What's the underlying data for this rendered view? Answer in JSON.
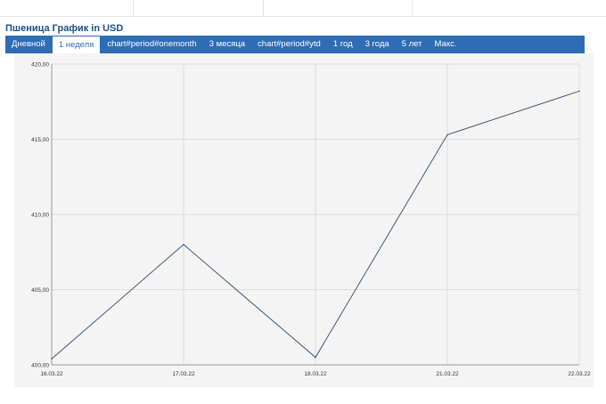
{
  "header": {
    "title": "Пшеница График in USD"
  },
  "tabs": [
    {
      "label": "Дневной",
      "active": false
    },
    {
      "label": "1 неделя",
      "active": true
    },
    {
      "label": "chart#period#onemonth",
      "active": false
    },
    {
      "label": "3 месяца",
      "active": false
    },
    {
      "label": "chart#period#ytd",
      "active": false
    },
    {
      "label": "1 год",
      "active": false
    },
    {
      "label": "3 года",
      "active": false
    },
    {
      "label": "5 лет",
      "active": false
    },
    {
      "label": "Макс.",
      "active": false
    }
  ],
  "colors": {
    "tab_bar": "#2e6db4",
    "title": "#1a4f8a",
    "line": "#3a5a7a",
    "grid": "#dddddd"
  },
  "chart_data": {
    "type": "line",
    "x": [
      "16.03.22",
      "17.03.22",
      "18.03.22",
      "21.03.22",
      "22.03.22"
    ],
    "series": [
      {
        "values": [
          400.4,
          408.0,
          400.5,
          415.3,
          418.2
        ]
      }
    ],
    "yticks": [
      "400,00",
      "405,00",
      "410,00",
      "415,00",
      "420,00"
    ],
    "ylim": [
      400,
      420
    ],
    "grid": true,
    "legend": "none"
  }
}
